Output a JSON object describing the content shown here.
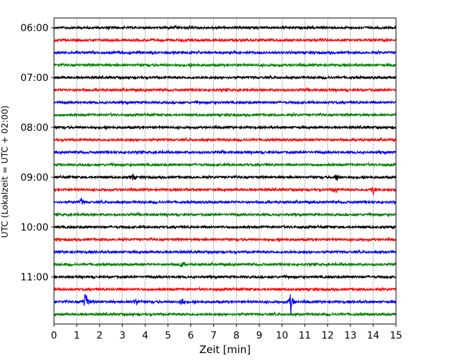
{
  "chart_data": {
    "type": "line",
    "title": "",
    "xlabel": "Zeit  [min]",
    "ylabel": "UTC (Lokalzeit = UTC + 02:00)",
    "xlim": [
      0,
      15
    ],
    "x_ticks": [
      "0",
      "1",
      "2",
      "3",
      "4",
      "5",
      "6",
      "7",
      "8",
      "9",
      "10",
      "11",
      "12",
      "13",
      "14",
      "15"
    ],
    "y_tick_labels": [
      "06:00",
      "07:00",
      "08:00",
      "09:00",
      "10:00",
      "11:00"
    ],
    "trace_start_times": [
      "06:00",
      "06:15",
      "06:30",
      "06:45",
      "07:00",
      "07:15",
      "07:30",
      "07:45",
      "08:00",
      "08:15",
      "08:30",
      "08:45",
      "09:00",
      "09:15",
      "09:30",
      "09:45",
      "10:00",
      "10:15",
      "10:30",
      "10:45",
      "11:00",
      "11:15",
      "11:30",
      "11:45"
    ],
    "trace_colors": [
      "#000000",
      "#ff0000",
      "#0000ff",
      "#008000"
    ],
    "grid": "vertical dotted at each minute",
    "events": [
      {
        "trace": "09:00",
        "x": 3.45,
        "amp": 0.5
      },
      {
        "trace": "09:00",
        "x": 12.4,
        "amp": 0.6
      },
      {
        "trace": "09:15",
        "x": 12.35,
        "amp": 0.7
      },
      {
        "trace": "09:15",
        "x": 14.0,
        "amp": 0.7
      },
      {
        "trace": "09:30",
        "x": 1.2,
        "amp": 0.5
      },
      {
        "trace": "10:45",
        "x": 5.6,
        "amp": 0.5
      },
      {
        "trace": "11:30",
        "x": 1.4,
        "amp": 2.2
      },
      {
        "trace": "11:30",
        "x": 3.6,
        "amp": 0.6
      },
      {
        "trace": "11:30",
        "x": 5.6,
        "amp": 0.8
      },
      {
        "trace": "11:30",
        "x": 10.4,
        "amp": 1.8
      }
    ]
  }
}
